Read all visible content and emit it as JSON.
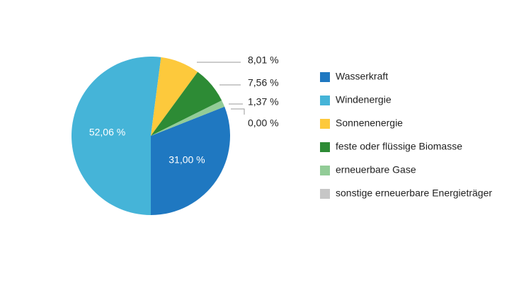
{
  "chart_data": {
    "type": "pie",
    "categories": [
      "Wasserkraft",
      "Windenergie",
      "Sonnenenergie",
      "feste oder flüssige Biomasse",
      "erneuerbare Gase",
      "sonstige erneuerbare Energieträger"
    ],
    "values": [
      31.0,
      52.06,
      8.01,
      7.56,
      1.37,
      0.0
    ],
    "value_labels": [
      "31,00 %",
      "52,06 %",
      "8,01 %",
      "7,56 %",
      "1,37 %",
      "0,00 %"
    ],
    "colors": [
      "#1f78c1",
      "#45b4d8",
      "#fdc93c",
      "#2d8b35",
      "#92cc97",
      "#c6c6c6"
    ],
    "legend": "right"
  }
}
